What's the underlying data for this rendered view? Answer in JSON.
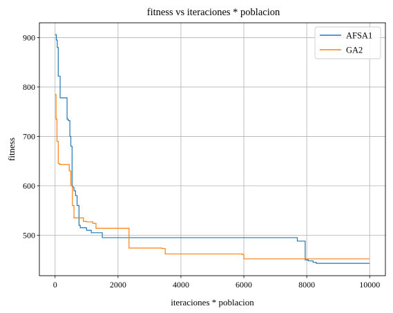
{
  "chart_data": {
    "type": "line",
    "title": "fitness vs iteraciones * poblacion",
    "xlabel": "iteraciones * poblacion",
    "ylabel": "fitness",
    "xlim": [
      -500,
      10500
    ],
    "ylim": [
      418,
      930
    ],
    "xticks": [
      0,
      2000,
      4000,
      6000,
      8000,
      10000
    ],
    "yticks": [
      500,
      600,
      700,
      800,
      900
    ],
    "grid": true,
    "legend_position": "top-right",
    "series": [
      {
        "name": "AFSA1",
        "color": "#1f77b4",
        "step": true,
        "x": [
          0,
          40,
          70,
          100,
          130,
          160,
          200,
          380,
          420,
          470,
          500,
          540,
          560,
          600,
          650,
          700,
          760,
          800,
          850,
          1000,
          1150,
          1300,
          1500,
          7700,
          7950,
          8050,
          8200,
          8300,
          10000
        ],
        "y": [
          906,
          895,
          880,
          822,
          822,
          778,
          778,
          735,
          732,
          700,
          680,
          600,
          597,
          590,
          580,
          560,
          520,
          515,
          515,
          510,
          505,
          505,
          495,
          488,
          450,
          448,
          445,
          443,
          443
        ]
      },
      {
        "name": "GA2",
        "color": "#ff7f0e",
        "step": true,
        "x": [
          0,
          30,
          60,
          100,
          150,
          450,
          500,
          550,
          600,
          800,
          900,
          1000,
          1200,
          1300,
          2300,
          2350,
          3400,
          3500,
          5950,
          6000,
          10000
        ],
        "y": [
          785,
          735,
          690,
          645,
          643,
          630,
          600,
          560,
          535,
          535,
          528,
          527,
          524,
          514,
          514,
          474,
          473,
          462,
          461,
          452,
          452
        ]
      }
    ]
  }
}
